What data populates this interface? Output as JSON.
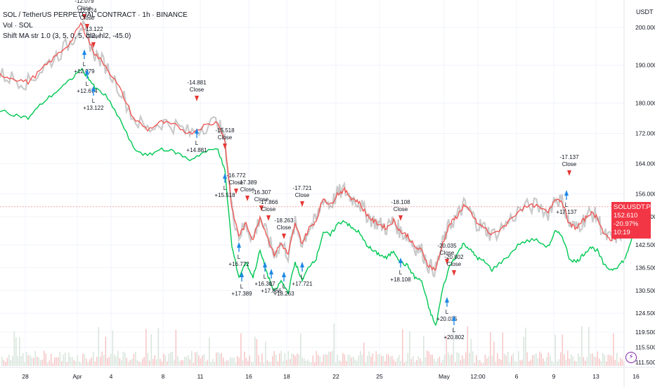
{
  "header": {
    "symbol_line": "SOL / TetherUS PERPETUAL CONTRACT · 1h · BINANCE",
    "vol_line": "Vol · SOL",
    "strategy_line": "Shift MA str 1.0 (3, 5, 0, 5, hl2, hl2, -45.0)"
  },
  "price_axis": {
    "unit": "USDT",
    "labels": [
      "200.000",
      "190.000",
      "180.000",
      "172.000",
      "164.000",
      "156.000",
      "150.000",
      "142.500",
      "136.500",
      "130.500",
      "124.500",
      "119.500",
      "115.500",
      "111.500"
    ],
    "current_price_symbol": "SOLUSDT.P",
    "current_price": "152.610",
    "current_change": "-20.97%",
    "countdown": "10:19"
  },
  "time_axis": {
    "labels": [
      "28",
      "Apr",
      "4",
      "8",
      "11",
      "16",
      "18",
      "22",
      "25",
      "May",
      "12:00",
      "6",
      "9",
      "13",
      "16"
    ]
  },
  "colors": {
    "price_line": "#ef5350",
    "price_band": "#9e9e9e",
    "shift_ma": "#00c853",
    "long_arrow": "#1e88e5",
    "close_arrow": "#e53935",
    "grid": "#f0f3fa",
    "volume": "#f4c4c4"
  },
  "chart_data": {
    "type": "line",
    "series": [
      {
        "name": "SOLUSDT.P",
        "x": [
          0,
          20,
          40,
          60,
          80,
          100,
          115,
          125,
          135,
          150,
          170,
          190,
          210,
          230,
          250,
          270,
          290,
          310,
          320,
          330,
          340,
          350,
          360,
          370,
          380,
          390,
          400,
          410,
          420,
          430,
          440,
          450,
          460,
          470,
          480,
          490,
          500,
          510,
          520,
          530,
          540,
          550,
          560,
          570,
          580,
          590,
          600,
          610,
          620,
          630,
          640,
          650,
          660,
          670,
          680,
          690,
          700,
          720,
          740,
          760,
          780,
          790,
          800,
          810,
          820,
          830,
          840,
          850,
          860,
          870,
          880,
          890,
          900
        ],
        "values": [
          187.5,
          186.5,
          185.5,
          189,
          192.5,
          196,
          201,
          197,
          193,
          190,
          184,
          176,
          173,
          175,
          174,
          172,
          174,
          175,
          170,
          152,
          145,
          148,
          144,
          150,
          145,
          140,
          143,
          140,
          148,
          143,
          147,
          149,
          155,
          153,
          156,
          157,
          155,
          154,
          151,
          149,
          148,
          147,
          149,
          146,
          145,
          142,
          141,
          137,
          136,
          143,
          148,
          150,
          153,
          151,
          148,
          147,
          145,
          148,
          152,
          153,
          151,
          155,
          154,
          148,
          147,
          149,
          151,
          150,
          145,
          144,
          145,
          147,
          152.6
        ]
      },
      {
        "name": "Shift MA str 1.0",
        "x": [
          0,
          20,
          40,
          60,
          80,
          100,
          115,
          125,
          135,
          150,
          170,
          190,
          210,
          230,
          250,
          270,
          290,
          310,
          320,
          330,
          340,
          350,
          360,
          370,
          380,
          390,
          400,
          410,
          420,
          430,
          440,
          450,
          460,
          470,
          480,
          490,
          500,
          510,
          520,
          530,
          540,
          550,
          560,
          570,
          580,
          590,
          600,
          610,
          620,
          630,
          640,
          650,
          660,
          670,
          680,
          690,
          700,
          720,
          740,
          760,
          780,
          790,
          800,
          810,
          820,
          830,
          840,
          850,
          860,
          870,
          880,
          890,
          900
        ],
        "values": [
          178,
          177,
          176,
          180,
          183,
          186,
          189,
          187,
          184,
          182,
          176,
          168,
          166,
          168,
          167,
          165,
          167,
          168,
          162,
          142,
          134,
          138,
          134,
          141,
          135,
          130,
          133,
          130,
          138,
          133,
          137,
          139,
          146,
          145,
          148,
          149,
          147,
          146,
          143,
          141,
          140,
          139,
          141,
          138,
          137,
          134,
          133,
          126,
          121,
          131,
          137,
          140,
          143,
          141,
          139,
          138,
          136,
          139,
          143,
          144,
          142,
          146,
          145,
          139,
          138,
          140,
          142,
          141,
          137,
          136,
          137,
          139,
          145
        ]
      }
    ],
    "annotations": [
      {
        "label": "-12.079",
        "sub": "Close",
        "kind": "close"
      },
      {
        "label": "-12.674",
        "sub": "Close",
        "kind": "close"
      },
      {
        "label": "-13.122",
        "sub": "Close",
        "kind": "close"
      },
      {
        "label": "-14.881",
        "sub": "Close",
        "kind": "close"
      },
      {
        "label": "-15.518",
        "sub": "Close",
        "kind": "close"
      },
      {
        "label": "-16.772",
        "sub": "Close",
        "kind": "close"
      },
      {
        "label": "-17.389",
        "sub": "Close",
        "kind": "close"
      },
      {
        "label": "-16.307",
        "sub": "Close",
        "kind": "close"
      },
      {
        "label": "-17.866",
        "sub": "Close",
        "kind": "close"
      },
      {
        "label": "-17.721",
        "sub": "Close",
        "kind": "close"
      },
      {
        "label": "-18.263",
        "sub": "Close",
        "kind": "close"
      },
      {
        "label": "-18.108",
        "sub": "Close",
        "kind": "close"
      },
      {
        "label": "-20.035",
        "sub": "Close",
        "kind": "close"
      },
      {
        "label": "-20.802",
        "sub": "Close",
        "kind": "close"
      },
      {
        "label": "-17.137",
        "sub": "Close",
        "kind": "close"
      },
      {
        "label": "+12.079",
        "sub": "L",
        "kind": "long"
      },
      {
        "label": "+12.674",
        "sub": "L",
        "kind": "long"
      },
      {
        "label": "+13.122",
        "sub": "L",
        "kind": "long"
      },
      {
        "label": "+14.881",
        "sub": "L",
        "kind": "long"
      },
      {
        "label": "+15.518",
        "sub": "L",
        "kind": "long"
      },
      {
        "label": "+16.772",
        "sub": "L",
        "kind": "long"
      },
      {
        "label": "+17.389",
        "sub": "L",
        "kind": "long"
      },
      {
        "label": "+16.307",
        "sub": "L",
        "kind": "long"
      },
      {
        "label": "+17.866",
        "sub": "L",
        "kind": "long"
      },
      {
        "label": "+18.263",
        "sub": "L",
        "kind": "long"
      },
      {
        "label": "+17.721",
        "sub": "L",
        "kind": "long"
      },
      {
        "label": "+18.108",
        "sub": "L",
        "kind": "long"
      },
      {
        "label": "+20.035",
        "sub": "L",
        "kind": "long"
      },
      {
        "label": "+20.802",
        "sub": "L",
        "kind": "long"
      },
      {
        "label": "+17.137",
        "sub": "L",
        "kind": "long"
      }
    ],
    "ylim": [
      111.5,
      205
    ],
    "grid": true
  }
}
